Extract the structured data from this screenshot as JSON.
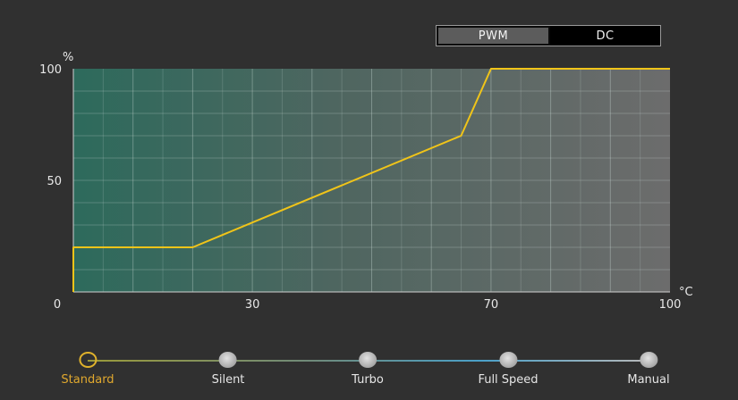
{
  "mode_toggle": {
    "options": [
      {
        "label": "PWM",
        "active": true
      },
      {
        "label": "DC",
        "active": false
      }
    ]
  },
  "chart_data": {
    "type": "line",
    "ylabel": "%",
    "xunit": "°C",
    "xlim": [
      0,
      100
    ],
    "ylim": [
      0,
      100
    ],
    "xticks": [
      0,
      30,
      70,
      100
    ],
    "yticks": [
      0,
      50,
      100
    ],
    "grid": true,
    "series": [
      {
        "x": [
          0,
          0,
          20,
          65,
          70,
          100
        ],
        "y": [
          0,
          20,
          20,
          70,
          100,
          100
        ]
      }
    ],
    "line_color": "#f0c419"
  },
  "presets": {
    "items": [
      {
        "label": "Standard",
        "active": true
      },
      {
        "label": "Silent",
        "active": false
      },
      {
        "label": "Turbo",
        "active": false
      },
      {
        "label": "Full Speed",
        "active": false
      },
      {
        "label": "Manual",
        "active": false
      }
    ]
  }
}
